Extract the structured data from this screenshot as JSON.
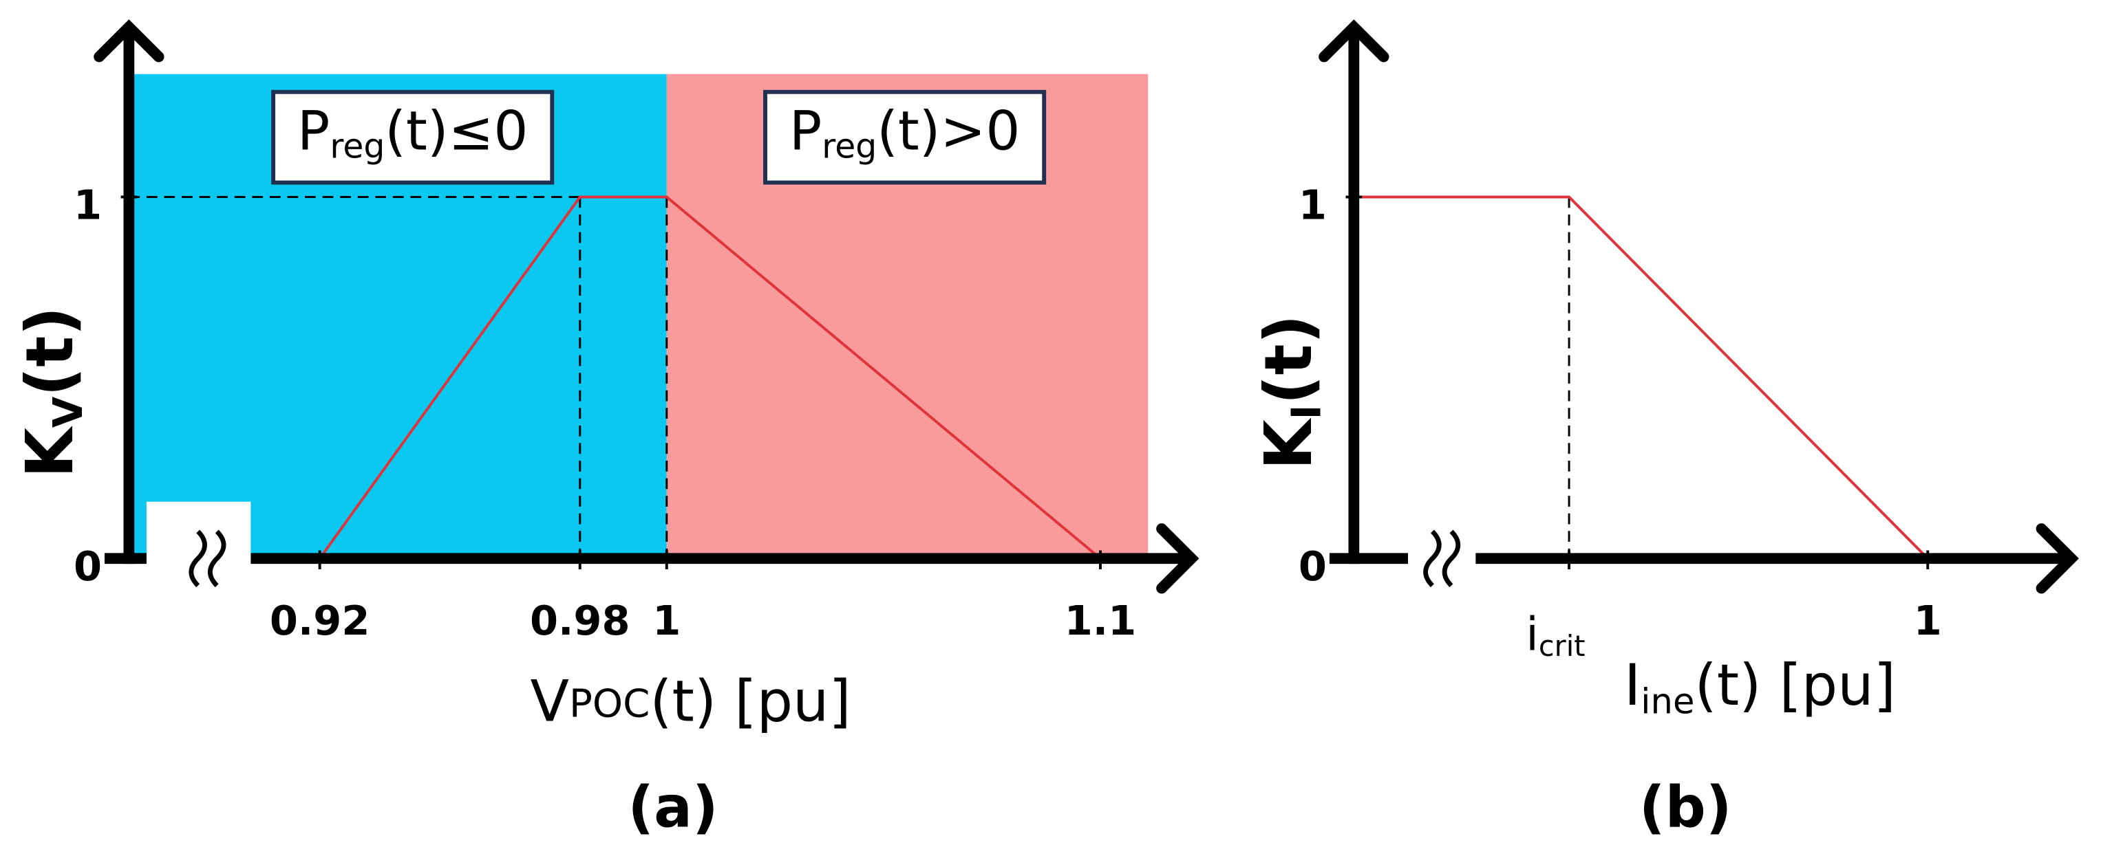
{
  "chart_data": [
    {
      "type": "line",
      "x": [
        0.92,
        0.98,
        1,
        1.1
      ],
      "values": [
        0,
        1,
        1,
        0
      ],
      "color": "#e0343c",
      "xlim": [
        0.876,
        1.121
      ],
      "ylim": [
        0,
        1.47
      ],
      "xticks": [
        0.92,
        0.98,
        1,
        1.1
      ],
      "yticks": [
        0,
        1
      ],
      "ylabel": {
        "main": "K",
        "sub": "V",
        "rest": "(t)"
      },
      "xlabel": {
        "main": "V",
        "small": "POC",
        "rest": "(t) [pu]"
      },
      "caption": "(a)",
      "regions": [
        {
          "xrange": [
            0.876,
            1
          ],
          "top": 1.34,
          "color": "#0ac8f0",
          "label": {
            "main": "P",
            "sub": "reg",
            "rest": "(t)≤0"
          }
        },
        {
          "xrange": [
            1,
            1.111
          ],
          "top": 1.34,
          "color": "#f99b9b",
          "label": {
            "main": "P",
            "sub": "reg",
            "rest": "(t)>0"
          }
        }
      ]
    },
    {
      "type": "line",
      "x": [
        0.2,
        0.5,
        1
      ],
      "values": [
        1,
        1,
        0
      ],
      "color": "#e0343c",
      "xlim": [
        0.2,
        1.2
      ],
      "ylim": [
        0,
        1.47
      ],
      "xticks": [
        {
          "value": 0.5,
          "label": {
            "main": "i",
            "sub": "crit"
          }
        },
        1
      ],
      "yticks": [
        0,
        1
      ],
      "ylabel": {
        "main": "K",
        "sub": "I",
        "rest": "(t)"
      },
      "xlabel": {
        "main": "I",
        "sub": "ine",
        "rest": "(t) [pu]"
      },
      "caption": "(b)"
    }
  ]
}
